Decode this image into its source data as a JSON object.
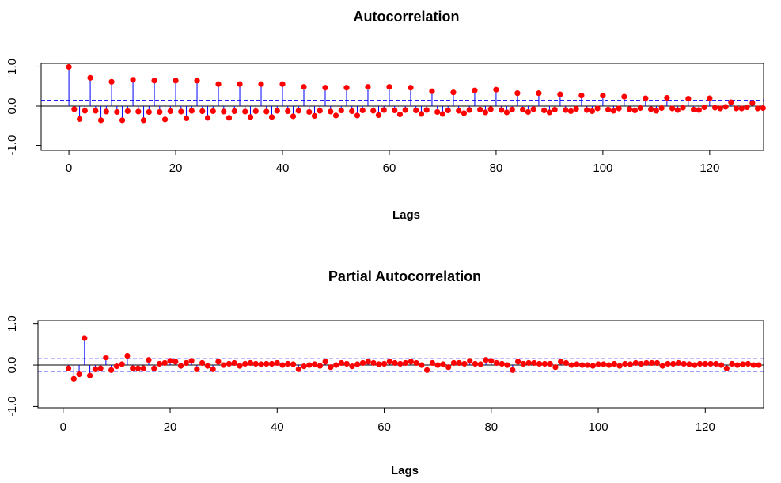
{
  "chart_data": [
    {
      "type": "stem",
      "title": "Autocorrelation",
      "xlabel": "Lags",
      "x": [
        0,
        1,
        2,
        3,
        4,
        5,
        6,
        7,
        8,
        9,
        10,
        11,
        12,
        13,
        14,
        15,
        16,
        17,
        18,
        19,
        20,
        21,
        22,
        23,
        24,
        25,
        26,
        27,
        28,
        29,
        30,
        31,
        32,
        33,
        34,
        35,
        36,
        37,
        38,
        39,
        40,
        41,
        42,
        43,
        44,
        45,
        46,
        47,
        48,
        49,
        50,
        51,
        52,
        53,
        54,
        55,
        56,
        57,
        58,
        59,
        60,
        61,
        62,
        63,
        64,
        65,
        66,
        67,
        68,
        69,
        70,
        71,
        72,
        73,
        74,
        75,
        76,
        77,
        78,
        79,
        80,
        81,
        82,
        83,
        84,
        85,
        86,
        87,
        88,
        89,
        90,
        91,
        92,
        93,
        94,
        95,
        96,
        97,
        98,
        99,
        100,
        101,
        102,
        103,
        104,
        105,
        106,
        107,
        108,
        109,
        110,
        111,
        112,
        113,
        114,
        115,
        116,
        117,
        118,
        119,
        120,
        121,
        122,
        123,
        124,
        125,
        126,
        127,
        128,
        129,
        130
      ],
      "values": [
        1.0,
        -0.08,
        -0.33,
        -0.12,
        0.72,
        -0.12,
        -0.36,
        -0.14,
        0.62,
        -0.15,
        -0.36,
        -0.13,
        0.67,
        -0.14,
        -0.36,
        -0.15,
        0.65,
        -0.15,
        -0.34,
        -0.13,
        0.65,
        -0.14,
        -0.31,
        -0.12,
        0.65,
        -0.13,
        -0.3,
        -0.13,
        0.56,
        -0.14,
        -0.3,
        -0.13,
        0.56,
        -0.14,
        -0.28,
        -0.13,
        0.56,
        -0.14,
        -0.28,
        -0.12,
        0.56,
        -0.13,
        -0.26,
        -0.12,
        0.49,
        -0.15,
        -0.25,
        -0.12,
        0.47,
        -0.14,
        -0.24,
        -0.11,
        0.47,
        -0.13,
        -0.24,
        -0.11,
        0.49,
        -0.12,
        -0.23,
        -0.1,
        0.49,
        -0.11,
        -0.21,
        -0.1,
        0.47,
        -0.11,
        -0.2,
        -0.1,
        0.38,
        -0.15,
        -0.2,
        -0.11,
        0.35,
        -0.12,
        -0.18,
        -0.1,
        0.4,
        -0.09,
        -0.16,
        -0.08,
        0.42,
        -0.1,
        -0.16,
        -0.09,
        0.33,
        -0.09,
        -0.15,
        -0.08,
        0.33,
        -0.11,
        -0.16,
        -0.09,
        0.3,
        -0.1,
        -0.13,
        -0.07,
        0.27,
        -0.1,
        -0.13,
        -0.06,
        0.27,
        -0.09,
        -0.12,
        -0.06,
        0.24,
        -0.08,
        -0.11,
        -0.05,
        0.2,
        -0.08,
        -0.12,
        -0.05,
        0.21,
        -0.06,
        -0.1,
        -0.04,
        0.19,
        -0.09,
        -0.1,
        -0.03,
        0.2,
        -0.04,
        -0.06,
        -0.02,
        0.1,
        -0.06,
        -0.06,
        -0.03,
        0.08,
        -0.06,
        -0.05
      ],
      "color": "#ff0000",
      "stem_color": "#0000ff",
      "bands": [
        -0.15,
        0.15
      ],
      "band_color": "#0000ff",
      "xlim": [
        -5.2,
        130.1
      ],
      "ylim": [
        -1.13,
        1.09
      ],
      "xticks": [
        0,
        20,
        40,
        60,
        80,
        100,
        120
      ],
      "yticks": [
        {
          "value": -1,
          "label": "-1.0"
        },
        {
          "value": 0,
          "label": "0.0"
        },
        {
          "value": 1,
          "label": "1.0"
        }
      ]
    },
    {
      "type": "stem",
      "title": "Partial Autocorrelation",
      "xlabel": "Lags",
      "x": [
        1,
        2,
        3,
        4,
        5,
        6,
        7,
        8,
        9,
        10,
        11,
        12,
        13,
        14,
        15,
        16,
        17,
        18,
        19,
        20,
        21,
        22,
        23,
        24,
        25,
        26,
        27,
        28,
        29,
        30,
        31,
        32,
        33,
        34,
        35,
        36,
        37,
        38,
        39,
        40,
        41,
        42,
        43,
        44,
        45,
        46,
        47,
        48,
        49,
        50,
        51,
        52,
        53,
        54,
        55,
        56,
        57,
        58,
        59,
        60,
        61,
        62,
        63,
        64,
        65,
        66,
        67,
        68,
        69,
        70,
        71,
        72,
        73,
        74,
        75,
        76,
        77,
        78,
        79,
        80,
        81,
        82,
        83,
        84,
        85,
        86,
        87,
        88,
        89,
        90,
        91,
        92,
        93,
        94,
        95,
        96,
        97,
        98,
        99,
        100,
        101,
        102,
        103,
        104,
        105,
        106,
        107,
        108,
        109,
        110,
        111,
        112,
        113,
        114,
        115,
        116,
        117,
        118,
        119,
        120,
        121,
        122,
        123,
        124,
        125,
        126,
        127,
        128,
        129,
        130
      ],
      "values": [
        -0.08,
        -0.33,
        -0.22,
        0.65,
        -0.25,
        -0.1,
        -0.08,
        0.18,
        -0.12,
        -0.03,
        0.02,
        0.22,
        -0.08,
        -0.08,
        -0.08,
        0.12,
        -0.08,
        0.03,
        0.05,
        0.1,
        0.08,
        -0.02,
        0.05,
        0.1,
        -0.1,
        0.05,
        -0.02,
        -0.1,
        0.08,
        0.0,
        0.03,
        0.05,
        -0.02,
        0.03,
        0.05,
        0.03,
        0.02,
        0.03,
        0.03,
        0.05,
        0.0,
        0.03,
        0.02,
        -0.1,
        -0.03,
        0.0,
        0.02,
        -0.02,
        0.08,
        -0.05,
        0.0,
        0.05,
        0.03,
        -0.03,
        0.02,
        0.05,
        0.08,
        0.05,
        0.02,
        0.03,
        0.08,
        0.05,
        0.03,
        0.05,
        0.08,
        0.05,
        0.0,
        -0.12,
        0.05,
        0.0,
        0.02,
        -0.05,
        0.05,
        0.05,
        0.03,
        0.1,
        0.03,
        0.02,
        0.12,
        0.1,
        0.05,
        0.03,
        0.0,
        -0.12,
        0.08,
        0.03,
        0.05,
        0.05,
        0.03,
        0.03,
        0.03,
        -0.05,
        0.08,
        0.05,
        0.0,
        0.02,
        0.0,
        0.0,
        -0.02,
        0.02,
        0.02,
        0.0,
        0.03,
        -0.02,
        0.03,
        0.02,
        0.05,
        0.03,
        0.05,
        0.05,
        0.05,
        -0.02,
        0.03,
        0.03,
        0.05,
        0.03,
        0.02,
        0.0,
        0.03,
        0.03,
        0.03,
        0.03,
        0.0,
        -0.08,
        0.03,
        0.0,
        0.02,
        0.03,
        0.0,
        0.0
      ],
      "color": "#ff0000",
      "stem_color": "#0000ff",
      "bands": [
        -0.15,
        0.15
      ],
      "band_color": "#0000ff",
      "xlim": [
        -4.7,
        130.9
      ],
      "ylim": [
        -1.03,
        1.07
      ],
      "xticks": [
        0,
        20,
        40,
        60,
        80,
        100,
        120
      ],
      "yticks": [
        {
          "value": -1,
          "label": "-1.0"
        },
        {
          "value": 0,
          "label": "0.0"
        },
        {
          "value": 1,
          "label": "1.0"
        }
      ]
    }
  ]
}
